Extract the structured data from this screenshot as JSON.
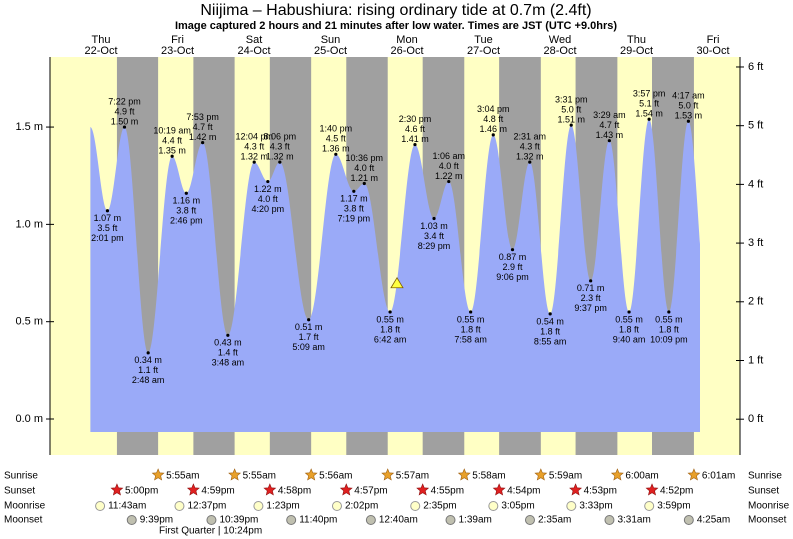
{
  "header": {
    "title": "Niijima – Habushiura: rising  ordinary tide at 0.7m (2.4ft)",
    "subtitle": "Image captured 2 hours and 21 minutes after low water. Times are JST (UTC +9.0hrs)"
  },
  "chart_data": {
    "type": "area",
    "color": "#9aaaf8",
    "day_color": "#ffffc4",
    "night_color": "#a0a0a0",
    "day_label_color": "#e00000",
    "days": [
      {
        "dow": "Thu",
        "date": "22-Oct"
      },
      {
        "dow": "Fri",
        "date": "23-Oct"
      },
      {
        "dow": "Sat",
        "date": "24-Oct"
      },
      {
        "dow": "Sun",
        "date": "25-Oct"
      },
      {
        "dow": "Mon",
        "date": "26-Oct"
      },
      {
        "dow": "Tue",
        "date": "27-Oct"
      },
      {
        "dow": "Wed",
        "date": "28-Oct"
      },
      {
        "dow": "Thu",
        "date": "29-Oct"
      },
      {
        "dow": "Fri",
        "date": "30-Oct"
      }
    ],
    "extremes": [
      {
        "time": "2:01 pm",
        "m": 1.07,
        "m_label": "1.07 m",
        "ft_label": "3.5 ft"
      },
      {
        "time": "7:22 pm",
        "m": 1.5,
        "m_label": "1.50 m",
        "ft_label": "4.9 ft"
      },
      {
        "time": "2:48 am",
        "m": 0.34,
        "m_label": "0.34 m",
        "ft_label": "1.1 ft"
      },
      {
        "time": "10:19 am",
        "m": 1.35,
        "m_label": "1.35 m",
        "ft_label": "4.4 ft"
      },
      {
        "time": "2:46 pm",
        "m": 1.16,
        "m_label": "1.16 m",
        "ft_label": "3.8 ft"
      },
      {
        "time": "7:53 pm",
        "m": 1.42,
        "m_label": "1.42 m",
        "ft_label": "4.7 ft"
      },
      {
        "time": "3:48 am",
        "m": 0.43,
        "m_label": "0.43 m",
        "ft_label": "1.4 ft"
      },
      {
        "time": "12:04 pm",
        "m": 1.32,
        "m_label": "1.32 m",
        "ft_label": "4.3 ft"
      },
      {
        "time": "4:20 pm",
        "m": 1.22,
        "m_label": "1.22 m",
        "ft_label": "4.0 ft"
      },
      {
        "time": "8:06 pm",
        "m": 1.32,
        "m_label": "1.32 m",
        "ft_label": "4.3 ft"
      },
      {
        "time": "5:09 am",
        "m": 0.51,
        "m_label": "0.51 m",
        "ft_label": "1.7 ft"
      },
      {
        "time": "1:40 pm",
        "m": 1.36,
        "m_label": "1.36 m",
        "ft_label": "4.5 ft"
      },
      {
        "time": "7:19 pm",
        "m": 1.17,
        "m_label": "1.17 m",
        "ft_label": "3.8 ft"
      },
      {
        "time": "10:36 pm",
        "m": 1.21,
        "m_label": "1.21 m",
        "ft_label": "4.0 ft"
      },
      {
        "time": "6:42 am",
        "m": 0.55,
        "m_label": "0.55 m",
        "ft_label": "1.8 ft"
      },
      {
        "time": "2:30 pm",
        "m": 1.41,
        "m_label": "1.41 m",
        "ft_label": "4.6 ft"
      },
      {
        "time": "8:29 pm",
        "m": 1.03,
        "m_label": "1.03 m",
        "ft_label": "3.4 ft"
      },
      {
        "time": "1:06 am",
        "m": 1.22,
        "m_label": "1.22 m",
        "ft_label": "4.0 ft"
      },
      {
        "time": "7:58 am",
        "m": 0.55,
        "m_label": "0.55 m",
        "ft_label": "1.8 ft"
      },
      {
        "time": "3:04 pm",
        "m": 1.46,
        "m_label": "1.46 m",
        "ft_label": "4.8 ft"
      },
      {
        "time": "9:06 pm",
        "m": 0.87,
        "m_label": "0.87 m",
        "ft_label": "2.9 ft"
      },
      {
        "time": "2:31 am",
        "m": 1.32,
        "m_label": "1.32 m",
        "ft_label": "4.3 ft"
      },
      {
        "time": "8:55 am",
        "m": 0.54,
        "m_label": "0.54 m",
        "ft_label": "1.8 ft"
      },
      {
        "time": "3:31 pm",
        "m": 1.51,
        "m_label": "1.51 m",
        "ft_label": "5.0 ft"
      },
      {
        "time": "9:37 pm",
        "m": 0.71,
        "m_label": "0.71 m",
        "ft_label": "2.3 ft"
      },
      {
        "time": "3:29 am",
        "m": 1.43,
        "m_label": "1.43 m",
        "ft_label": "4.7 ft"
      },
      {
        "time": "9:40 am",
        "m": 0.55,
        "m_label": "0.55 m",
        "ft_label": "1.8 ft"
      },
      {
        "time": "3:57 pm",
        "m": 1.54,
        "m_label": "1.54 m",
        "ft_label": "5.1 ft"
      },
      {
        "time": "10:09 pm",
        "m": 0.55,
        "m_label": "0.55 m",
        "ft_label": "1.8 ft"
      },
      {
        "time": "4:17 am",
        "m": 1.53,
        "m_label": "1.53 m",
        "ft_label": "5.0 ft"
      }
    ],
    "current_m": 0.7,
    "ylim": [
      -0.185,
      1.86
    ],
    "yticks": [
      {
        "value": 0,
        "label": "0.0 m"
      },
      {
        "value": 0.5,
        "label": "0.5 m"
      },
      {
        "value": 1.0,
        "label": "1.0 m"
      },
      {
        "value": 1.5,
        "label": "1.5 m"
      }
    ],
    "y2lim": [
      -0.61,
      6.17
    ],
    "y2ticks": [
      {
        "value": 0,
        "label": "0 ft"
      },
      {
        "value": 1,
        "label": "1 ft"
      },
      {
        "value": 2,
        "label": "2 ft"
      },
      {
        "value": 3,
        "label": "3 ft"
      },
      {
        "value": 4,
        "label": "4 ft"
      },
      {
        "value": 5,
        "label": "5 ft"
      },
      {
        "value": 6,
        "label": "6 ft"
      }
    ]
  },
  "events": {
    "labels": {
      "sunrise": "Sunrise",
      "sunset": "Sunset",
      "moonrise": "Moonrise",
      "moonset": "Moonset"
    },
    "sunrise": [
      null,
      "5:55am",
      "5:55am",
      "5:56am",
      "5:57am",
      "5:58am",
      "5:59am",
      "6:00am",
      "6:01am"
    ],
    "sunset": [
      "5:00pm",
      "4:59pm",
      "4:58pm",
      "4:57pm",
      "4:55pm",
      "4:54pm",
      "4:53pm",
      "4:52pm",
      null
    ],
    "moonrise": [
      "11:43am",
      "12:37pm",
      "1:23pm",
      "2:02pm",
      "2:35pm",
      "3:05pm",
      "3:33pm",
      "3:59pm",
      null
    ],
    "moonset": [
      "9:39pm",
      "10:39pm",
      "11:40pm",
      null,
      "12:40am",
      "1:39am",
      "2:35am",
      "3:31am",
      "4:25am"
    ],
    "moon_phase": "First Quarter | 10:24pm"
  }
}
